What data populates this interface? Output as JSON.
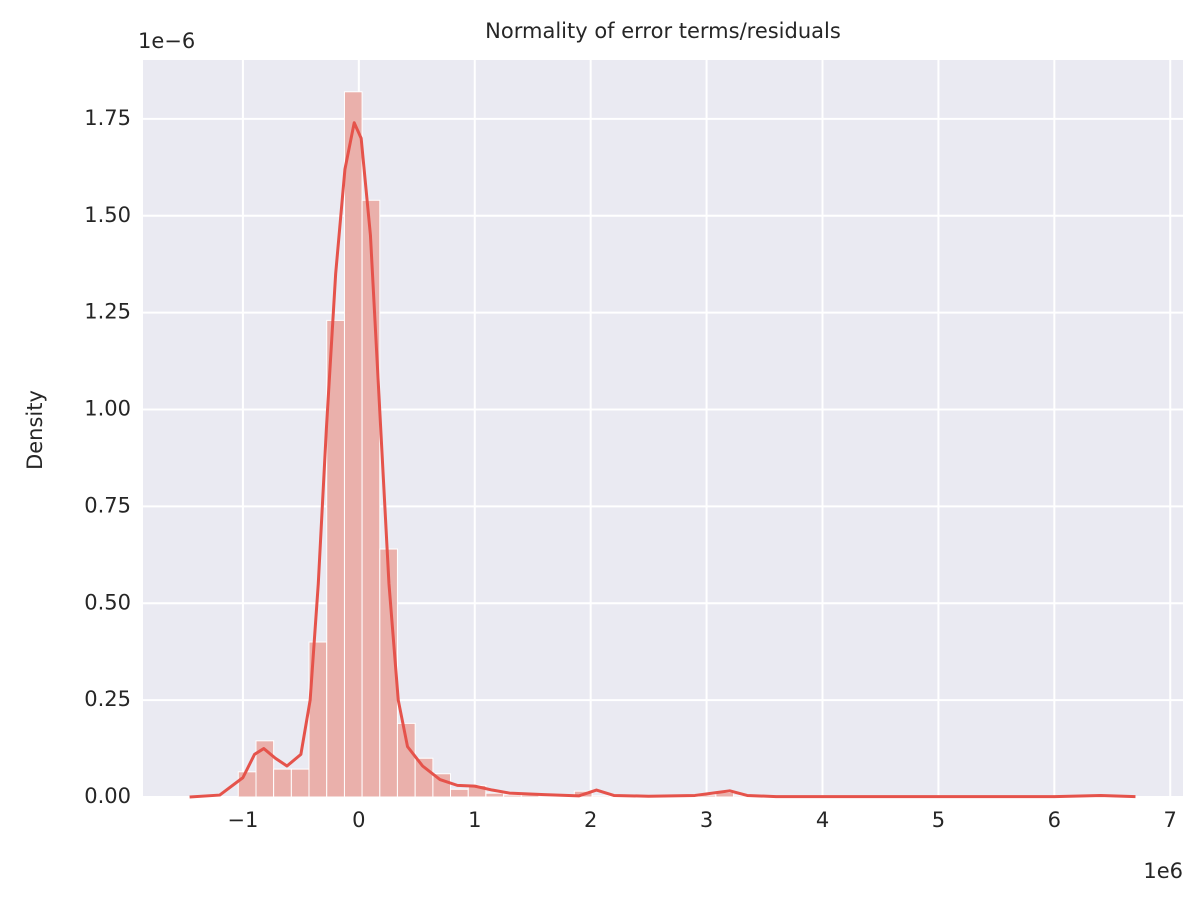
{
  "chart_data": {
    "type": "histogram",
    "title": "Normality of error terms/residuals",
    "y_label": "Density",
    "x_offset_label": "1e6",
    "y_offset_label": "1e−6",
    "bins": [
      -1.04,
      -0.887,
      -0.735,
      -0.582,
      -0.43,
      -0.277,
      -0.124,
      0.028,
      0.181,
      0.333,
      0.486,
      0.639,
      0.791,
      0.944,
      1.096,
      1.249,
      1.402,
      1.554,
      1.707,
      1.859,
      2.012,
      2.165,
      2.317,
      2.47,
      2.622,
      2.775,
      2.928,
      3.08,
      3.233,
      3.385,
      3.538,
      3.691,
      3.843,
      3.996,
      4.148,
      4.301,
      4.454,
      4.606,
      4.759,
      4.911,
      5.064,
      5.217,
      5.369,
      5.522,
      5.674,
      5.827,
      5.98,
      6.132,
      6.285,
      6.437,
      6.59
    ],
    "values": [
      0.065,
      0.145,
      0.072,
      0.072,
      0.4,
      1.23,
      1.82,
      1.54,
      0.64,
      0.19,
      0.1,
      0.06,
      0.02,
      0.03,
      0.01,
      0.005,
      0.005,
      0.003,
      0.003,
      0.015,
      0.003,
      0,
      0,
      0,
      0,
      0.003,
      0.005,
      0.012,
      0.003,
      0,
      0,
      0,
      0,
      0,
      0,
      0,
      0,
      0,
      0,
      0,
      0,
      0,
      0,
      0,
      0,
      0,
      0,
      0,
      0.005,
      0
    ],
    "color": "#eab0ab",
    "kde": {
      "color": "#e5534b",
      "x": [
        -1.46,
        -1.2,
        -1.0,
        -0.9,
        -0.82,
        -0.72,
        -0.62,
        -0.5,
        -0.42,
        -0.35,
        -0.28,
        -0.2,
        -0.12,
        -0.04,
        0.02,
        0.1,
        0.18,
        0.26,
        0.34,
        0.42,
        0.55,
        0.7,
        0.85,
        1.0,
        1.15,
        1.3,
        1.6,
        1.9,
        2.05,
        2.2,
        2.5,
        2.9,
        3.1,
        3.2,
        3.35,
        3.6,
        4.5,
        6.0,
        6.4,
        6.7
      ],
      "y": [
        0,
        0.005,
        0.05,
        0.11,
        0.125,
        0.1,
        0.08,
        0.11,
        0.25,
        0.55,
        0.95,
        1.35,
        1.62,
        1.74,
        1.7,
        1.45,
        1.0,
        0.55,
        0.25,
        0.13,
        0.08,
        0.045,
        0.03,
        0.028,
        0.018,
        0.01,
        0.006,
        0.003,
        0.018,
        0.004,
        0.002,
        0.004,
        0.012,
        0.016,
        0.004,
        0.001,
        0.001,
        0.001,
        0.004,
        0.001
      ]
    },
    "xlim": [
      -1.862,
      7.11
    ],
    "ylim": [
      0,
      1.902
    ],
    "xticks": [
      {
        "value": -1,
        "label": "−1"
      },
      0,
      1,
      2,
      3,
      4,
      5,
      6,
      7
    ],
    "yticks": [
      {
        "value": 0,
        "label": "0.00"
      },
      {
        "value": 0.25,
        "label": "0.25"
      },
      {
        "value": 0.5,
        "label": "0.50"
      },
      {
        "value": 0.75,
        "label": "0.75"
      },
      {
        "value": 1,
        "label": "1.00"
      },
      {
        "value": 1.25,
        "label": "1.25"
      },
      {
        "value": 1.5,
        "label": "1.50"
      },
      {
        "value": 1.75,
        "label": "1.75"
      }
    ],
    "grid": true
  }
}
